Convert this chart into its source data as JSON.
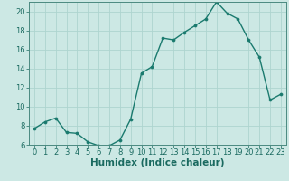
{
  "x": [
    0,
    1,
    2,
    3,
    4,
    5,
    6,
    7,
    8,
    9,
    10,
    11,
    12,
    13,
    14,
    15,
    16,
    17,
    18,
    19,
    20,
    21,
    22,
    23
  ],
  "y": [
    7.7,
    8.4,
    8.8,
    7.3,
    7.2,
    6.3,
    5.9,
    5.9,
    6.5,
    8.7,
    13.5,
    14.2,
    17.2,
    17.0,
    17.8,
    18.5,
    19.2,
    21.0,
    19.8,
    19.2,
    17.0,
    15.2,
    10.7,
    11.3
  ],
  "line_color": "#1a7a6e",
  "marker": "o",
  "marker_size": 2.2,
  "bg_color": "#cce8e4",
  "grid_color": "#aed4cf",
  "xlabel": "Humidex (Indice chaleur)",
  "xlim": [
    -0.5,
    23.5
  ],
  "ylim": [
    6,
    21
  ],
  "yticks": [
    6,
    8,
    10,
    12,
    14,
    16,
    18,
    20
  ],
  "xticks": [
    0,
    1,
    2,
    3,
    4,
    5,
    6,
    7,
    8,
    9,
    10,
    11,
    12,
    13,
    14,
    15,
    16,
    17,
    18,
    19,
    20,
    21,
    22,
    23
  ],
  "tick_color": "#1a6a60",
  "axis_color": "#4a8a80",
  "xlabel_fontsize": 7.5,
  "tick_fontsize": 6.0,
  "linewidth": 1.0
}
